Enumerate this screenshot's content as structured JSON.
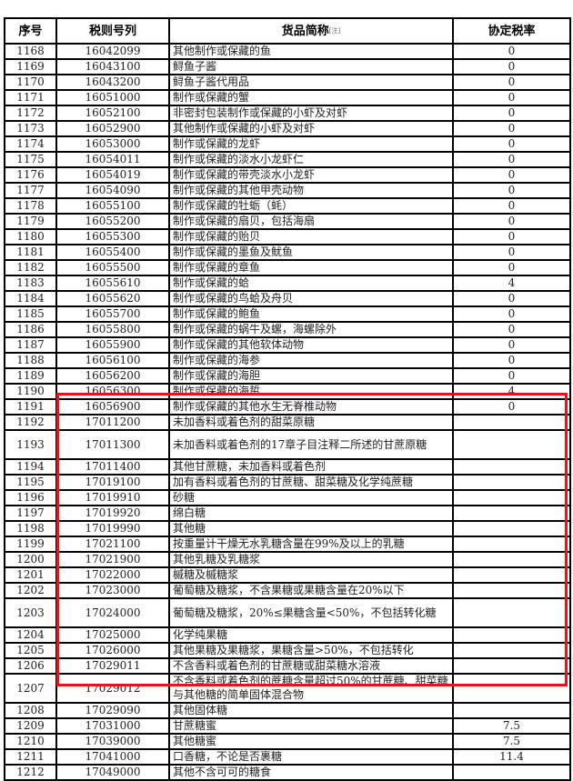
{
  "header": {
    "seq": "序号",
    "code": "税则号列",
    "name": "货品简称",
    "note": "[注]",
    "rate": "协定税率"
  },
  "highlight_color": "#e8141c",
  "rows": [
    {
      "seq": "1168",
      "code": "16042099",
      "name": "其他制作或保藏的鱼",
      "rate": "0"
    },
    {
      "seq": "1169",
      "code": "16043100",
      "name": "鲟鱼子酱",
      "rate": "0"
    },
    {
      "seq": "1170",
      "code": "16043200",
      "name": "鲟鱼子酱代用品",
      "rate": "0"
    },
    {
      "seq": "1171",
      "code": "16051000",
      "name": "制作或保藏的蟹",
      "rate": "0"
    },
    {
      "seq": "1172",
      "code": "16052100",
      "name": "非密封包装制作或保藏的小虾及对虾",
      "rate": "0"
    },
    {
      "seq": "1173",
      "code": "16052900",
      "name": "其他制作或保藏的小虾及对虾",
      "rate": "0"
    },
    {
      "seq": "1174",
      "code": "16053000",
      "name": "制作或保藏的龙虾",
      "rate": "0"
    },
    {
      "seq": "1175",
      "code": "16054011",
      "name": "制作或保藏的淡水小龙虾仁",
      "rate": "0"
    },
    {
      "seq": "1176",
      "code": "16054019",
      "name": "制作或保藏的带壳淡水小龙虾",
      "rate": "0"
    },
    {
      "seq": "1177",
      "code": "16054090",
      "name": "制作或保藏的其他甲壳动物",
      "rate": "0"
    },
    {
      "seq": "1178",
      "code": "16055100",
      "name": "制作或保藏的牡蛎（蚝）",
      "rate": "0"
    },
    {
      "seq": "1179",
      "code": "16055200",
      "name": "制作或保藏的扇贝，包括海扇",
      "rate": "0"
    },
    {
      "seq": "1180",
      "code": "16055300",
      "name": "制作或保藏的贻贝",
      "rate": "0"
    },
    {
      "seq": "1181",
      "code": "16055400",
      "name": "制作或保藏的墨鱼及鱿鱼",
      "rate": "0"
    },
    {
      "seq": "1182",
      "code": "16055500",
      "name": "制作或保藏的章鱼",
      "rate": "0"
    },
    {
      "seq": "1183",
      "code": "16055610",
      "name": "制作或保藏的蛤",
      "rate": "4"
    },
    {
      "seq": "1184",
      "code": "16055620",
      "name": "制作或保藏的鸟蛤及舟贝",
      "rate": "0"
    },
    {
      "seq": "1185",
      "code": "16055700",
      "name": "制作或保藏的鲍鱼",
      "rate": "0"
    },
    {
      "seq": "1186",
      "code": "16055800",
      "name": "制作或保藏的蜗牛及螺，海螺除外",
      "rate": "0"
    },
    {
      "seq": "1187",
      "code": "16055900",
      "name": "制作或保藏的其他软体动物",
      "rate": "0"
    },
    {
      "seq": "1188",
      "code": "16056100",
      "name": "制作或保藏的海参",
      "rate": "0"
    },
    {
      "seq": "1189",
      "code": "16056200",
      "name": "制作或保藏的海胆",
      "rate": "0"
    },
    {
      "seq": "1190",
      "code": "16056300",
      "name": "制作或保藏的海蜇",
      "rate": "4"
    },
    {
      "seq": "1191",
      "code": "16056900",
      "name": "制作或保藏的其他水生无脊椎动物",
      "rate": "0"
    },
    {
      "seq": "1192",
      "code": "17011200",
      "name": "未加香料或着色剂的甜菜原糖",
      "rate": ""
    },
    {
      "seq": "1193",
      "code": "17011300",
      "name": "未加香料或着色剂的17章子目注释二所述的甘蔗原糖",
      "rate": "",
      "tall": true
    },
    {
      "seq": "1194",
      "code": "17011400",
      "name": "其他甘蔗糖，未加香料或着色剂",
      "rate": ""
    },
    {
      "seq": "1195",
      "code": "17019100",
      "name": "加有香料或着色剂的甘蔗糖、甜菜糖及化学纯蔗糖",
      "rate": ""
    },
    {
      "seq": "1196",
      "code": "17019910",
      "name": "砂糖",
      "rate": ""
    },
    {
      "seq": "1197",
      "code": "17019920",
      "name": "绵白糖",
      "rate": ""
    },
    {
      "seq": "1198",
      "code": "17019990",
      "name": "其他糖",
      "rate": ""
    },
    {
      "seq": "1199",
      "code": "17021100",
      "name": "按重量计干燥无水乳糖含量在99%及以上的乳糖",
      "rate": ""
    },
    {
      "seq": "1200",
      "code": "17021900",
      "name": "其他乳糖及乳糖浆",
      "rate": ""
    },
    {
      "seq": "1201",
      "code": "17022000",
      "name": "槭糖及槭糖浆",
      "rate": ""
    },
    {
      "seq": "1202",
      "code": "17023000",
      "name": "葡萄糖及糖浆，不含果糖或果糖含量在20%以下",
      "rate": ""
    },
    {
      "seq": "1203",
      "code": "17024000",
      "name": "葡萄糖及糖浆，20%≤果糖含量<50%，不包括转化糖",
      "rate": "",
      "tall": true
    },
    {
      "seq": "1204",
      "code": "17025000",
      "name": "化学纯果糖",
      "rate": ""
    },
    {
      "seq": "1205",
      "code": "17026000",
      "name": "其他果糖及果糖浆，果糖含量>50%，不包括转化",
      "rate": ""
    },
    {
      "seq": "1206",
      "code": "17029011",
      "name": "不含香料或着色剂的甘蔗糖或甜菜糖水溶液",
      "rate": ""
    },
    {
      "seq": "1207",
      "code": "17029012",
      "name": "不含香料或着色剂的蔗糖含量超过50%的甘蔗糖、甜菜糖与其他糖的简单固体混合物",
      "rate": "",
      "tall": true
    },
    {
      "seq": "1208",
      "code": "17029090",
      "name": "其他固体糖",
      "rate": ""
    },
    {
      "seq": "1209",
      "code": "17031000",
      "name": "甘蔗糖蜜",
      "rate": "7.5"
    },
    {
      "seq": "1210",
      "code": "17039000",
      "name": "其他糖蜜",
      "rate": "7.5"
    },
    {
      "seq": "1211",
      "code": "17041000",
      "name": "口香糖，不论是否裹糖",
      "rate": "11.4"
    },
    {
      "seq": "1212",
      "code": "17049000",
      "name": "其他不含可可的糖食",
      "rate": ""
    }
  ]
}
